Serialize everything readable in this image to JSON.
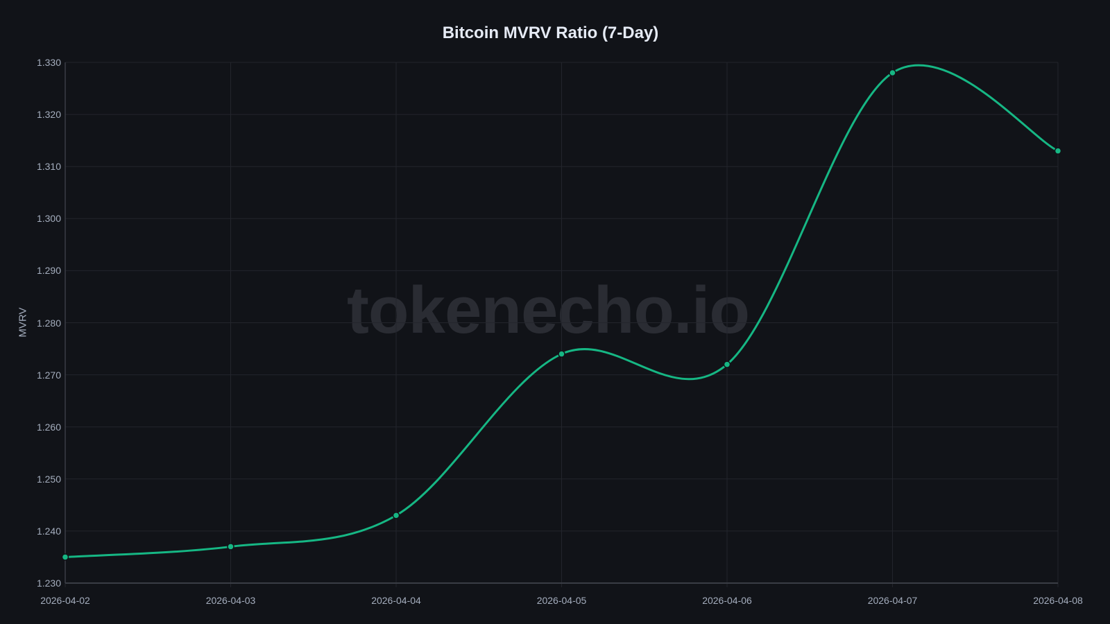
{
  "chart_data": {
    "type": "line",
    "title": "Bitcoin MVRV Ratio (7-Day)",
    "xlabel": "",
    "ylabel": "MVRV",
    "categories": [
      "2026-04-02",
      "2026-04-03",
      "2026-04-04",
      "2026-04-05",
      "2026-04-06",
      "2026-04-07",
      "2026-04-08"
    ],
    "series": [
      {
        "name": "MVRV",
        "values": [
          1.235,
          1.237,
          1.243,
          1.274,
          1.272,
          1.328,
          1.313
        ],
        "color": "#16b784"
      }
    ],
    "ylim": [
      1.23,
      1.33
    ],
    "yticks": [
      "1.330",
      "1.320",
      "1.310",
      "1.300",
      "1.290",
      "1.280",
      "1.270",
      "1.260",
      "1.250",
      "1.240",
      "1.230"
    ],
    "grid": true,
    "legend": "none",
    "watermark": "tokenecho.io"
  }
}
